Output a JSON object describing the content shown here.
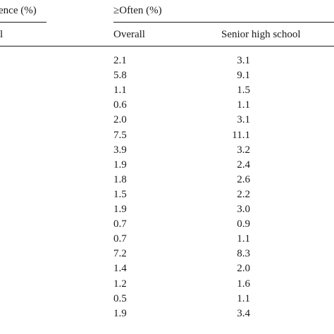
{
  "header": {
    "left_group_label": "ence (%)",
    "right_group_label": "≥Often (%)",
    "left_sub_label": "l",
    "col_overall": "Overall",
    "col_senior_high_school": "Senior high school"
  },
  "rows": [
    {
      "overall": "2.1",
      "senior_high_school": "3.1"
    },
    {
      "overall": "5.8",
      "senior_high_school": "9.1"
    },
    {
      "overall": "1.1",
      "senior_high_school": "1.5"
    },
    {
      "overall": "0.6",
      "senior_high_school": "1.1"
    },
    {
      "overall": "2.0",
      "senior_high_school": "3.1"
    },
    {
      "overall": "7.5",
      "senior_high_school": "11.1"
    },
    {
      "overall": "3.9",
      "senior_high_school": "3.2"
    },
    {
      "overall": "1.9",
      "senior_high_school": "2.4"
    },
    {
      "overall": "1.8",
      "senior_high_school": "2.6"
    },
    {
      "overall": "1.5",
      "senior_high_school": "2.2"
    },
    {
      "overall": "1.9",
      "senior_high_school": "3.0"
    },
    {
      "overall": "0.7",
      "senior_high_school": "0.9"
    },
    {
      "overall": "0.7",
      "senior_high_school": "1.1"
    },
    {
      "overall": "7.2",
      "senior_high_school": "8.3"
    },
    {
      "overall": "1.4",
      "senior_high_school": "2.0"
    },
    {
      "overall": "1.2",
      "senior_high_school": "1.6"
    },
    {
      "overall": "0.5",
      "senior_high_school": "1.1"
    },
    {
      "overall": "1.9",
      "senior_high_school": "3.4"
    }
  ]
}
